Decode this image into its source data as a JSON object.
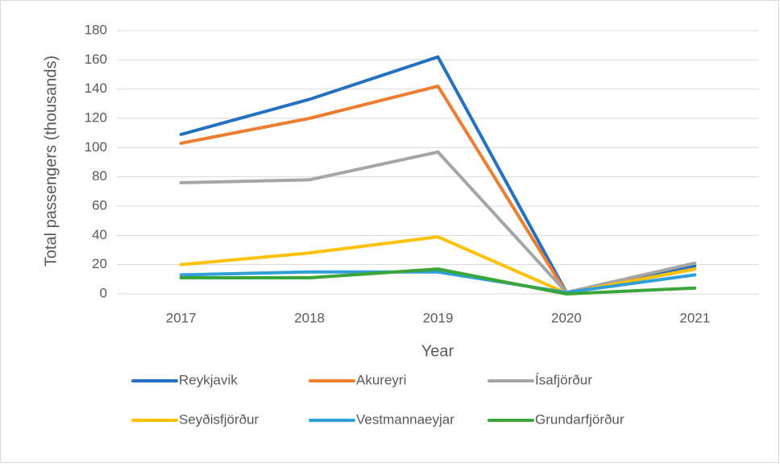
{
  "chart_data": {
    "type": "line",
    "x_label": "Year",
    "y_label": "Total passengers (thousands)",
    "categories": [
      "2017",
      "2018",
      "2019",
      "2020",
      "2021"
    ],
    "series": [
      {
        "name": "Reykjavik",
        "color": "#2471c2",
        "values": [
          109,
          133,
          162,
          1,
          19
        ]
      },
      {
        "name": "Akureyri",
        "color": "#ed7d31",
        "values": [
          103,
          120,
          142,
          0.5,
          17
        ]
      },
      {
        "name": "Ísafjörður",
        "color": "#a5a5a5",
        "values": [
          76,
          78,
          97,
          1,
          21
        ]
      },
      {
        "name": "Seyðisfjörður",
        "color": "#ffc000",
        "values": [
          20,
          28,
          39,
          0.5,
          17
        ]
      },
      {
        "name": "Vestmannaeyjar",
        "color": "#2e9fd9",
        "values": [
          13,
          15,
          15,
          1,
          13
        ]
      },
      {
        "name": "Grundarfjörður",
        "color": "#3aa63a",
        "values": [
          11,
          11,
          17,
          0,
          4
        ]
      }
    ],
    "ylim": [
      0,
      180
    ],
    "yticks": [
      0,
      20,
      40,
      60,
      80,
      100,
      120,
      140,
      160,
      180
    ],
    "grid": true,
    "legend": "bottom"
  }
}
